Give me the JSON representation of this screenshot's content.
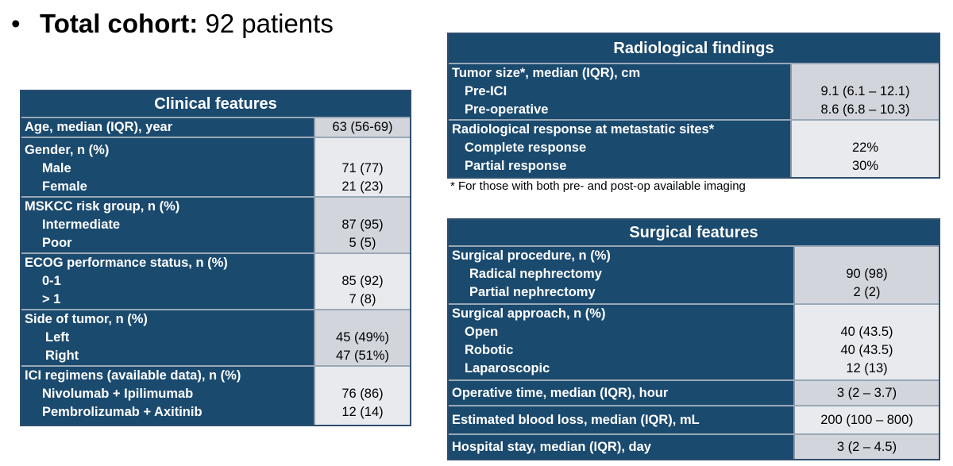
{
  "headline": {
    "bullet": "•",
    "label": "Total cohort:",
    "value": "92 patients"
  },
  "clinical": {
    "title": "Clinical features",
    "age_label": "Age, median (IQR), year",
    "age_value": "63 (56-69)",
    "gender_label": "Gender, n (%)",
    "male_label": "Male",
    "male_value": "71 (77)",
    "female_label": "Female",
    "female_value": "21 (23)",
    "mskcc_label": "MSKCC risk group, n (%)",
    "intermediate_label": "Intermediate",
    "intermediate_value": "87 (95)",
    "poor_label": "Poor",
    "poor_value": "5 (5)",
    "ecog_label": "ECOG performance status, n (%)",
    "ecog01_label": "0-1",
    "ecog01_value": "85 (92)",
    "ecog1_label": "> 1",
    "ecog1_value": "7 (8)",
    "side_label": "Side of tumor, n (%)",
    "left_label": "Left",
    "left_value": "45 (49%)",
    "right_label": "Right",
    "right_value": "47 (51%)",
    "ici_label": "ICI regimens (available data), n (%)",
    "nivo_label": "Nivolumab + Ipilimumab",
    "nivo_value": "76 (86)",
    "pembro_label": "Pembrolizumab + Axitinib",
    "pembro_value": "12 (14)"
  },
  "radiological": {
    "title": "Radiological findings",
    "size_label": "Tumor size*, median (IQR), cm",
    "preici_label": "Pre-ICI",
    "preici_value": "9.1 (6.1 – 12.1)",
    "preop_label": "Pre-operative",
    "preop_value": "8.6 (6.8 – 10.3)",
    "response_label": "Radiological response at metastatic sites*",
    "complete_label": "Complete response",
    "complete_value": "22%",
    "partial_label": "Partial response",
    "partial_value": "30%",
    "footnote": "* For those with both pre- and post-op available imaging"
  },
  "surgical": {
    "title": "Surgical features",
    "procedure_label": "Surgical procedure, n (%)",
    "radical_label": "Radical nephrectomy",
    "radical_value": "90 (98)",
    "partial_label": "Partial nephrectomy",
    "partial_value": "2 (2)",
    "approach_label": "Surgical approach, n (%)",
    "open_label": "Open",
    "open_value": "40 (43.5)",
    "robotic_label": "Robotic",
    "robotic_value": "40 (43.5)",
    "lap_label": "Laparoscopic",
    "lap_value": "12 (13)",
    "optime_label": "Operative time, median (IQR), hour",
    "optime_value": "3 (2 – 3.7)",
    "ebl_label": "Estimated blood loss, median (IQR), mL",
    "ebl_value": "200 (100 – 800)",
    "stay_label": "Hospital stay, median (IQR), day",
    "stay_value": "3 (2 – 4.5)"
  }
}
